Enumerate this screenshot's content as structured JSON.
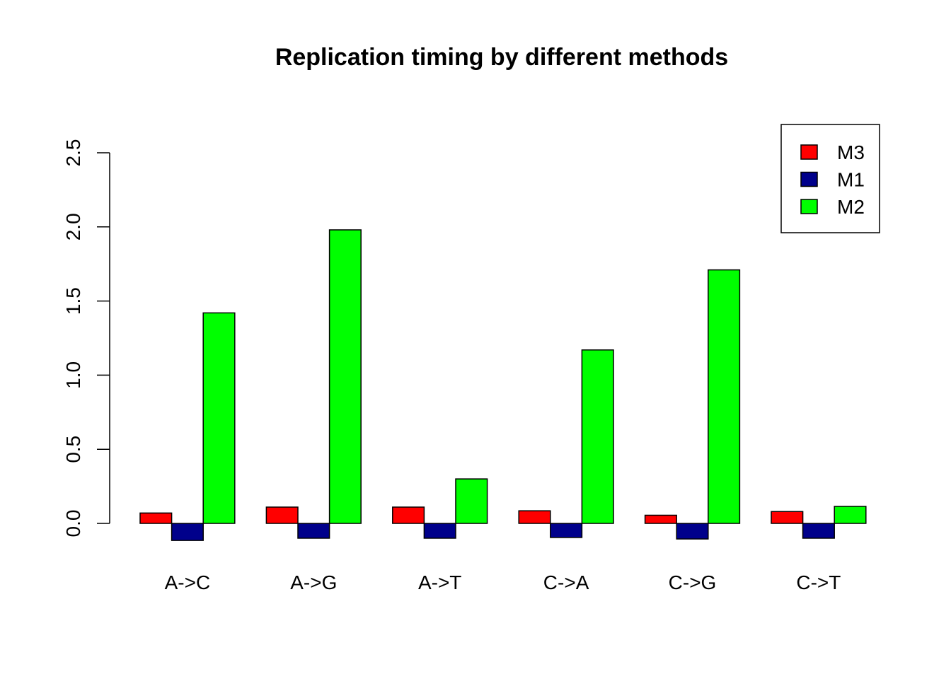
{
  "chart_data": {
    "type": "bar",
    "title": "Replication timing by  different methods",
    "xlabel": "",
    "ylabel": "",
    "categories": [
      "A->C",
      "A->G",
      "A->T",
      "C->A",
      "C->G",
      "C->T"
    ],
    "series": [
      {
        "name": "M3",
        "color": "#ff0000",
        "values": [
          0.07,
          0.11,
          0.11,
          0.085,
          0.055,
          0.08
        ]
      },
      {
        "name": "M1",
        "color": "#00008b",
        "values": [
          -0.115,
          -0.1,
          -0.1,
          -0.095,
          -0.105,
          -0.1
        ]
      },
      {
        "name": "M2",
        "color": "#00ff00",
        "values": [
          1.42,
          1.98,
          0.3,
          1.17,
          1.71,
          0.115
        ]
      }
    ],
    "ylim": [
      0,
      2.5
    ],
    "yticks": [
      "0.0",
      "0.5",
      "1.0",
      "1.5",
      "2.0",
      "2.5"
    ],
    "grid": false,
    "legend_position": "top-right"
  }
}
